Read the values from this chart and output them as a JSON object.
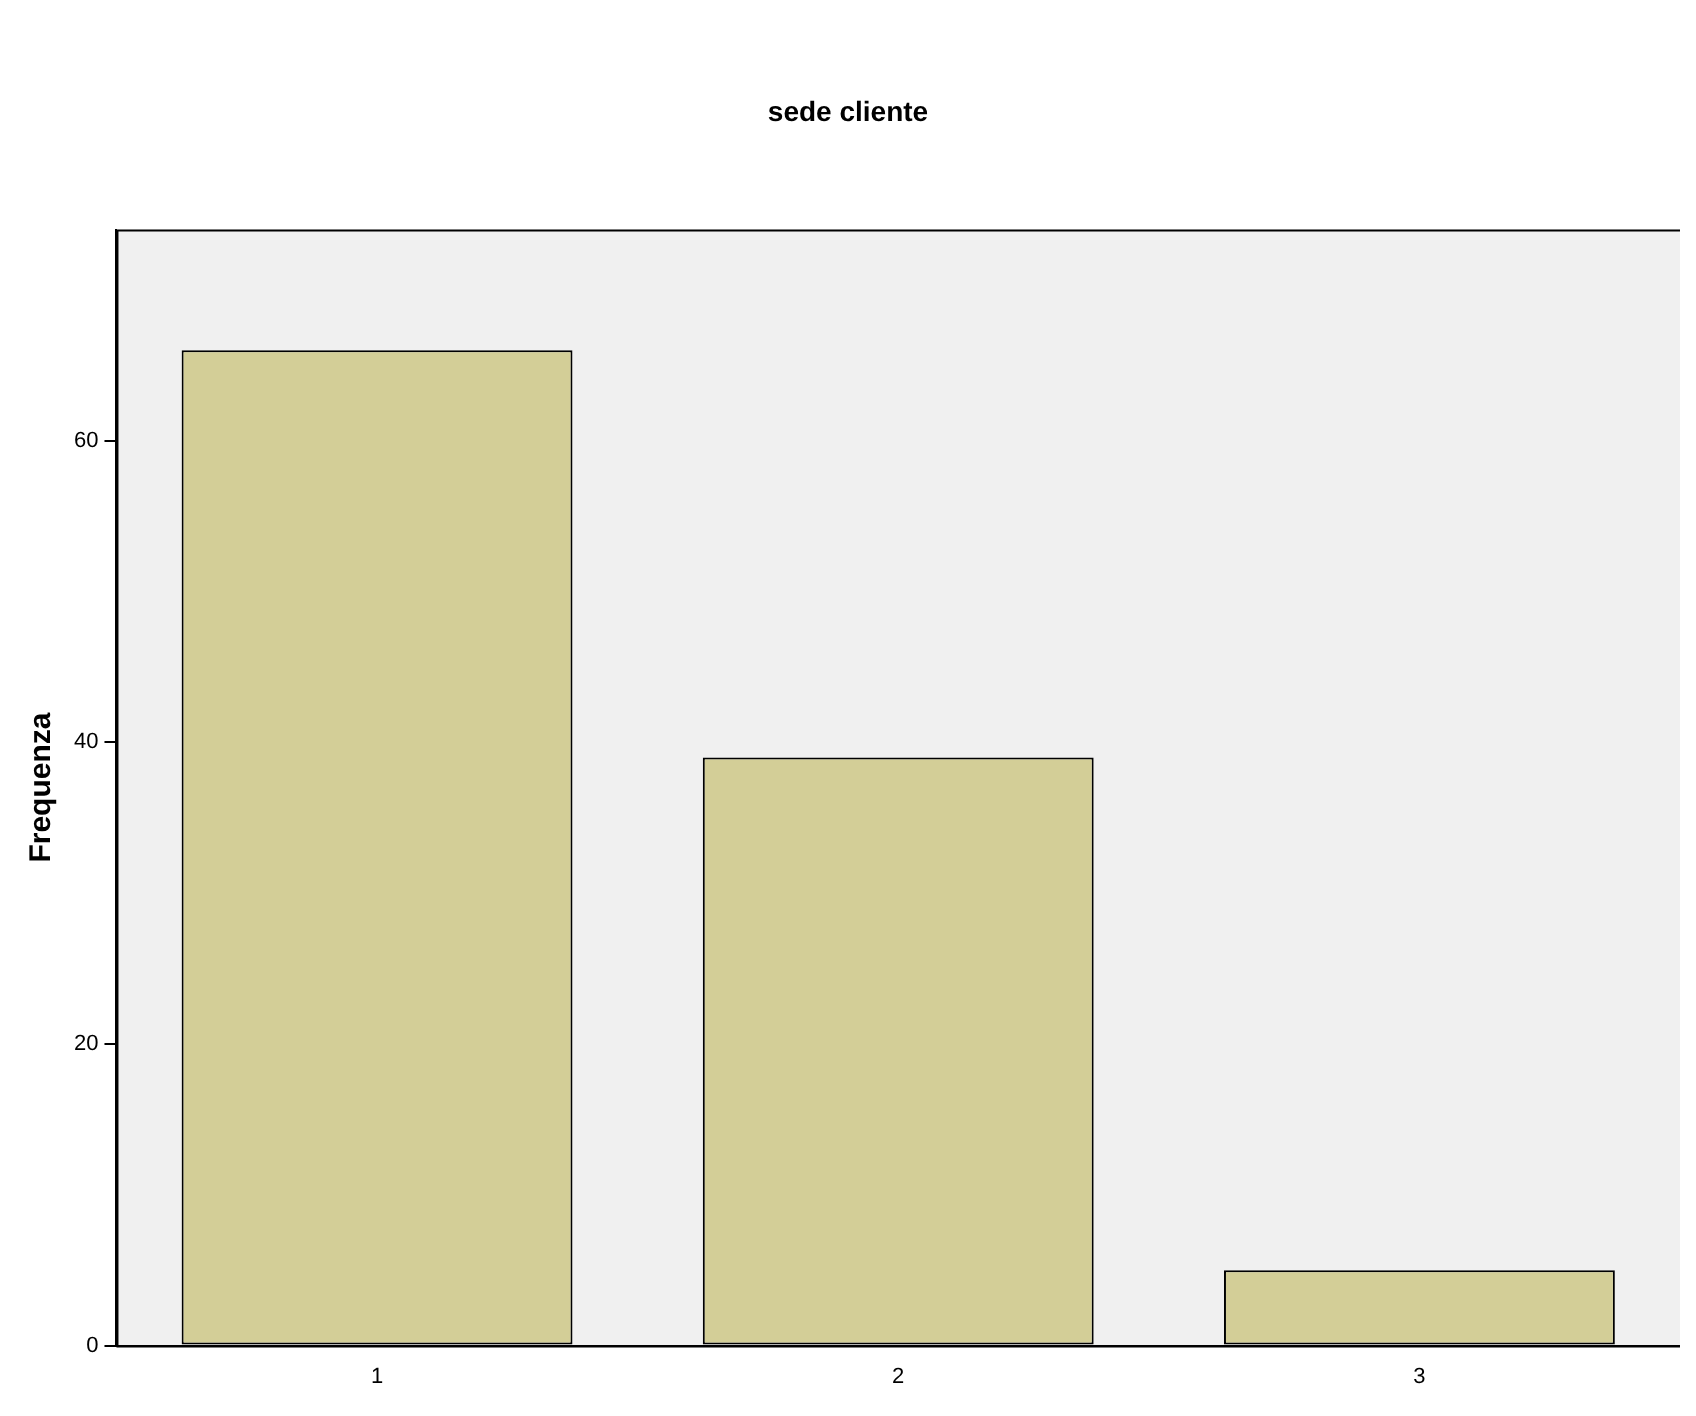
{
  "chart_data": {
    "type": "bar",
    "title": "sede cliente",
    "ylabel": "Frequenza",
    "categories": [
      "1",
      "2",
      "3"
    ],
    "values": [
      66,
      39,
      5
    ],
    "color": "#d3ce97",
    "ylim": [
      0,
      74
    ],
    "yticks": [
      0,
      20,
      40,
      60
    ],
    "grid": false,
    "legend": false
  }
}
